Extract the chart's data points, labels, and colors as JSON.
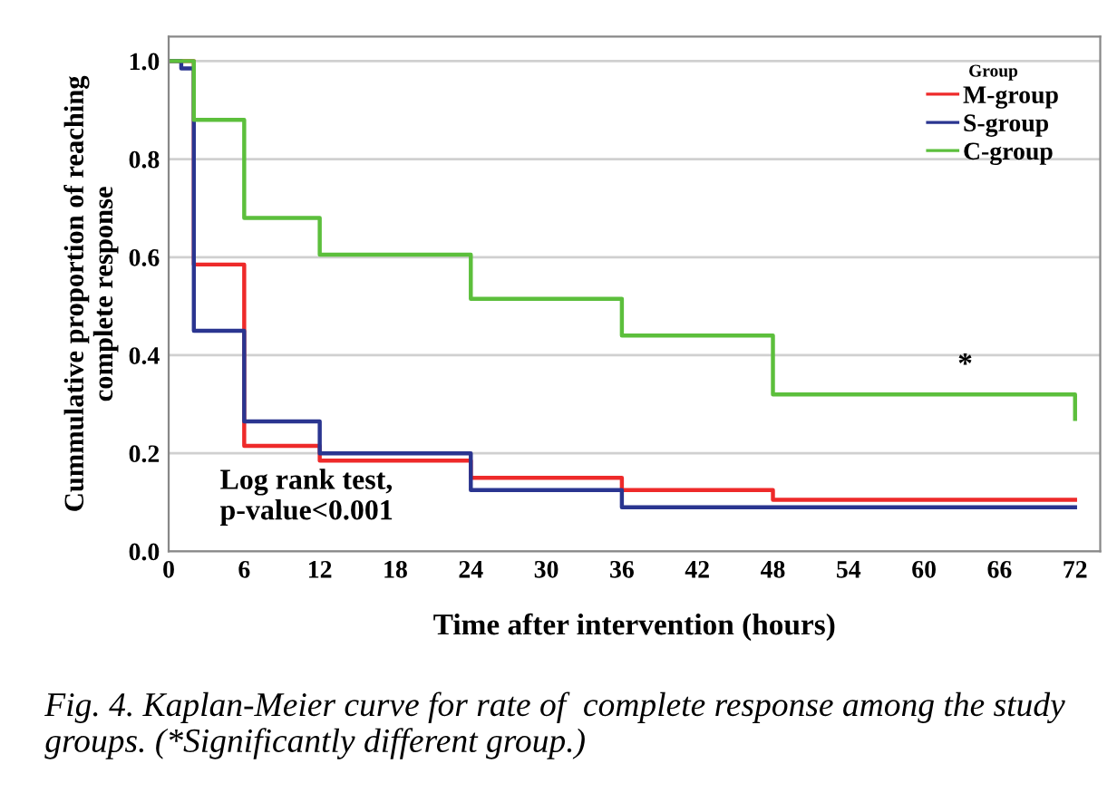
{
  "chart_data": {
    "type": "step",
    "xlabel": "Time after intervention (hours)",
    "ylabel": "Cummulative proportion of reaching\ncomplete response",
    "legend_title": "Group",
    "legend": "top right",
    "grid": "y",
    "xlim": [
      0,
      74
    ],
    "xticks": [
      0,
      6,
      12,
      18,
      24,
      30,
      36,
      42,
      48,
      54,
      60,
      66,
      72
    ],
    "ylim": [
      0,
      1.05
    ],
    "yticks": [
      {
        "value": 0,
        "label": "0.0"
      },
      0.2,
      0.4,
      0.6,
      0.8,
      {
        "value": 1,
        "label": "1.0"
      }
    ],
    "series": [
      {
        "name": "M-group",
        "color": "#ee2a2a",
        "x": [
          0,
          2,
          6,
          12,
          24,
          36,
          48,
          72
        ],
        "values": [
          1.0,
          0.585,
          0.215,
          0.185,
          0.15,
          0.125,
          0.105,
          0.105
        ]
      },
      {
        "name": "S-group",
        "color": "#2a3590",
        "x": [
          0,
          1,
          2,
          6,
          12,
          24,
          36,
          72
        ],
        "values": [
          1.0,
          0.985,
          0.45,
          0.265,
          0.2,
          0.125,
          0.09,
          0.09
        ]
      },
      {
        "name": "C-group",
        "color": "#5cbf3c",
        "x": [
          0,
          2,
          6,
          12,
          24,
          36,
          48,
          72,
          72
        ],
        "values": [
          1.0,
          0.88,
          0.68,
          0.605,
          0.515,
          0.44,
          0.32,
          0.32,
          0.27
        ]
      }
    ],
    "annotations": [
      "Log rank test,\np-value<0.001",
      "*",
      "Fig. 4. Kaplan-Meier curve for rate of  complete response among the study groups. (*Significantly different group.)"
    ]
  }
}
